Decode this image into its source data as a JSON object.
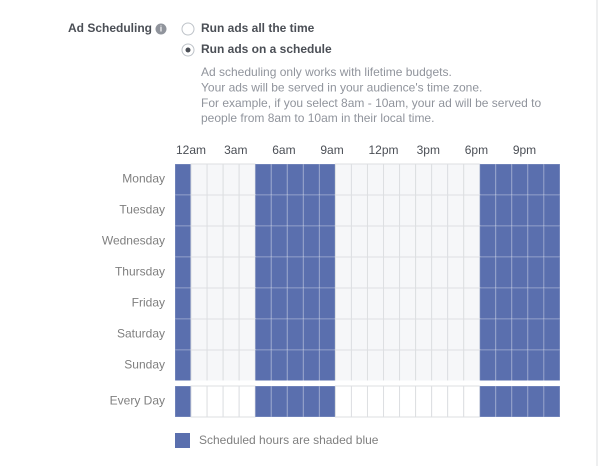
{
  "section_label": "Ad Scheduling",
  "options": [
    {
      "label": "Run ads all the time",
      "selected": false
    },
    {
      "label": "Run ads on a schedule",
      "selected": true
    }
  ],
  "description": [
    "Ad scheduling only works with lifetime budgets.",
    "Your ads will be served in your audience's time zone.",
    "For example, if you select 8am - 10am, your ad will be served to",
    "people from 8am to 10am in their local time."
  ],
  "grid": {
    "hour_labels": [
      "12am",
      "3am",
      "6am",
      "9am",
      "12pm",
      "3pm",
      "6pm",
      "9pm"
    ],
    "days": [
      "Monday",
      "Tuesday",
      "Wednesday",
      "Thursday",
      "Friday",
      "Saturday",
      "Sunday"
    ],
    "every_day_label": "Every Day",
    "scheduled_hours": [
      0,
      5,
      6,
      7,
      8,
      9,
      19,
      20,
      21,
      22,
      23
    ],
    "color": "#5a6fae"
  },
  "legend": "Scheduled hours are shaded blue"
}
